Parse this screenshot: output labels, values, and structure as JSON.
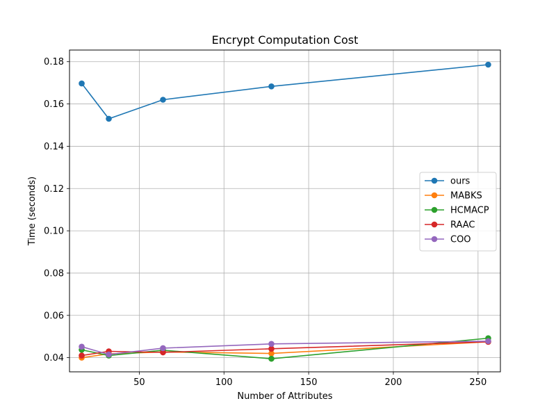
{
  "chart_data": {
    "type": "line",
    "title": "Encrypt Computation Cost",
    "xlabel": "Number of Attributes",
    "ylabel": "Time (seconds)",
    "xlim": [
      8.8,
      263.2
    ],
    "ylim": [
      0.0333,
      0.1855
    ],
    "xticks": [
      50,
      100,
      150,
      200,
      250
    ],
    "yticks": [
      0.04,
      0.06,
      0.08,
      0.1,
      0.12,
      0.14,
      0.16,
      0.18
    ],
    "ytick_labels": [
      "0.04",
      "0.06",
      "0.08",
      "0.10",
      "0.12",
      "0.14",
      "0.16",
      "0.18"
    ],
    "grid": true,
    "legend_position": "center-right",
    "x": [
      16,
      32,
      64,
      128,
      256
    ],
    "series": [
      {
        "name": "ours",
        "color": "#1f77b4",
        "values": [
          0.1697,
          0.153,
          0.162,
          0.1683,
          0.1786
        ]
      },
      {
        "name": "MABKS",
        "color": "#ff7f0e",
        "values": [
          0.04,
          0.0418,
          0.0427,
          0.042,
          0.0475
        ]
      },
      {
        "name": "HCMACP",
        "color": "#2ca02c",
        "values": [
          0.0437,
          0.041,
          0.0435,
          0.0395,
          0.0492
        ]
      },
      {
        "name": "RAAC",
        "color": "#d62728",
        "values": [
          0.041,
          0.043,
          0.0425,
          0.0442,
          0.0475
        ]
      },
      {
        "name": "COO",
        "color": "#9467bd",
        "values": [
          0.0452,
          0.0415,
          0.0445,
          0.0465,
          0.0478
        ]
      }
    ]
  }
}
